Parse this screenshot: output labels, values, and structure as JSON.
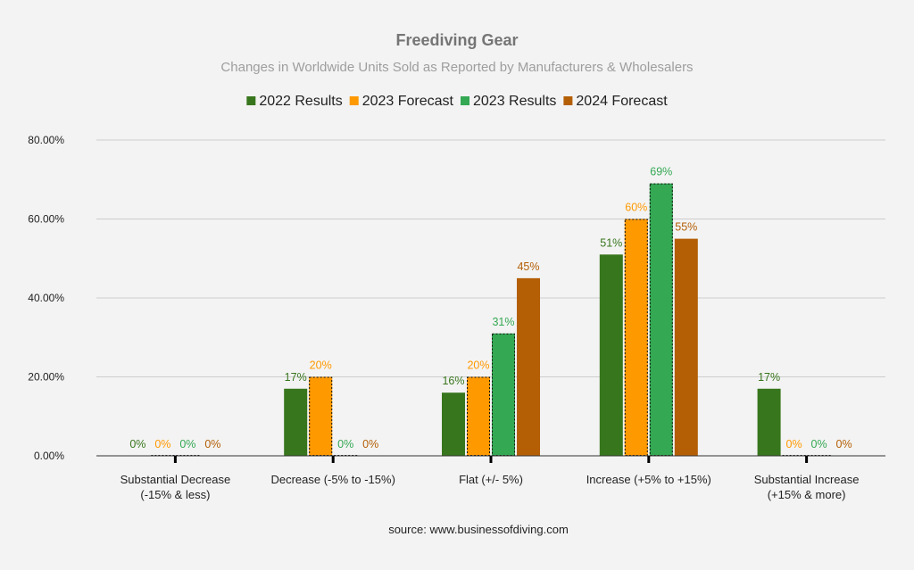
{
  "chart_data": {
    "type": "bar",
    "title": "Freediving Gear",
    "subtitle": "Changes in Worldwide Units Sold as Reported by Manufacturers & Wholesalers",
    "source": "source: www.businessofdiving.com",
    "legend_position": "top",
    "grid": true,
    "ylim": [
      0,
      80
    ],
    "yticks": [
      "0.00%",
      "20.00%",
      "40.00%",
      "60.00%",
      "80.00%"
    ],
    "ytick_values": [
      0,
      20,
      40,
      60,
      80
    ],
    "categories": [
      [
        "Substantial Decrease",
        "(-15% & less)"
      ],
      [
        "Decrease (-5% to -15%)"
      ],
      [
        "Flat (+/- 5%)"
      ],
      [
        "Increase (+5% to +15%)"
      ],
      [
        "Substantial Increase",
        "(+15% & more)"
      ]
    ],
    "series": [
      {
        "name": "2022 Results",
        "color": "#38761d",
        "dashed_outline": false,
        "values": [
          0,
          17,
          16,
          51,
          17
        ],
        "labels": [
          "0%",
          "17%",
          "16%",
          "51%",
          "17%"
        ]
      },
      {
        "name": "2023 Forecast",
        "color": "#ff9900",
        "dashed_outline": true,
        "values": [
          0,
          20,
          20,
          60,
          0
        ],
        "labels": [
          "0%",
          "20%",
          "20%",
          "60%",
          "0%"
        ]
      },
      {
        "name": "2023 Results",
        "color": "#34a853",
        "dashed_outline": true,
        "values": [
          0,
          0,
          31,
          69,
          0
        ],
        "labels": [
          "0%",
          "0%",
          "31%",
          "69%",
          "0%"
        ]
      },
      {
        "name": "2024 Forecast",
        "color": "#b45f06",
        "dashed_outline": false,
        "values": [
          0,
          0,
          45,
          55,
          0
        ],
        "labels": [
          "0%",
          "0%",
          "45%",
          "55%",
          "0%"
        ]
      }
    ],
    "colors": {
      "title": "#757575",
      "subtitle": "#9e9e9e",
      "axis_text": "#222222",
      "gridline": "#cccccc",
      "baseline": "#333333",
      "background": "#f3f3f3"
    }
  }
}
